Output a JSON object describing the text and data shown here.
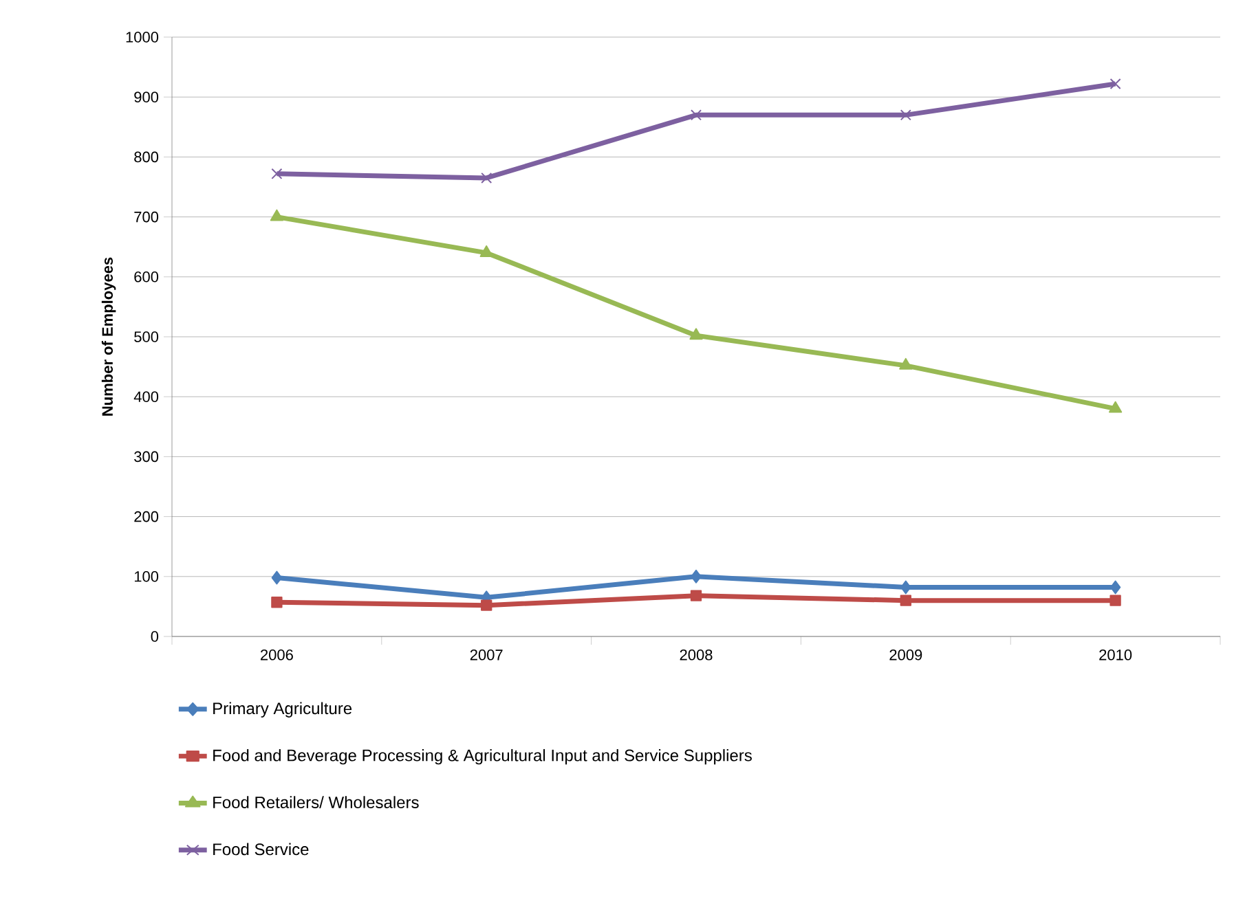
{
  "chart_data": {
    "type": "line",
    "ylabel": "Number of Employees",
    "categories": [
      "2006",
      "2007",
      "2008",
      "2009",
      "2010"
    ],
    "ylim": [
      0,
      1000
    ],
    "yticks": [
      0,
      100,
      200,
      300,
      400,
      500,
      600,
      700,
      800,
      900,
      1000
    ],
    "grid": "y",
    "legend": "bottom",
    "series": [
      {
        "name": "Primary Agriculture",
        "color": "#4a7ebb",
        "marker": "diamond",
        "values": [
          98,
          65,
          100,
          82,
          82
        ]
      },
      {
        "name": "Food and Beverage Processing & Agricultural Input and Service Suppliers",
        "color": "#be4b48",
        "marker": "square",
        "values": [
          57,
          52,
          68,
          60,
          60
        ]
      },
      {
        "name": "Food Retailers/ Wholesalers",
        "color": "#98b954",
        "marker": "triangle",
        "values": [
          700,
          640,
          502,
          452,
          380
        ]
      },
      {
        "name": "Food Service",
        "color": "#7d60a0",
        "marker": "cross",
        "values": [
          772,
          765,
          870,
          870,
          922
        ]
      }
    ]
  }
}
